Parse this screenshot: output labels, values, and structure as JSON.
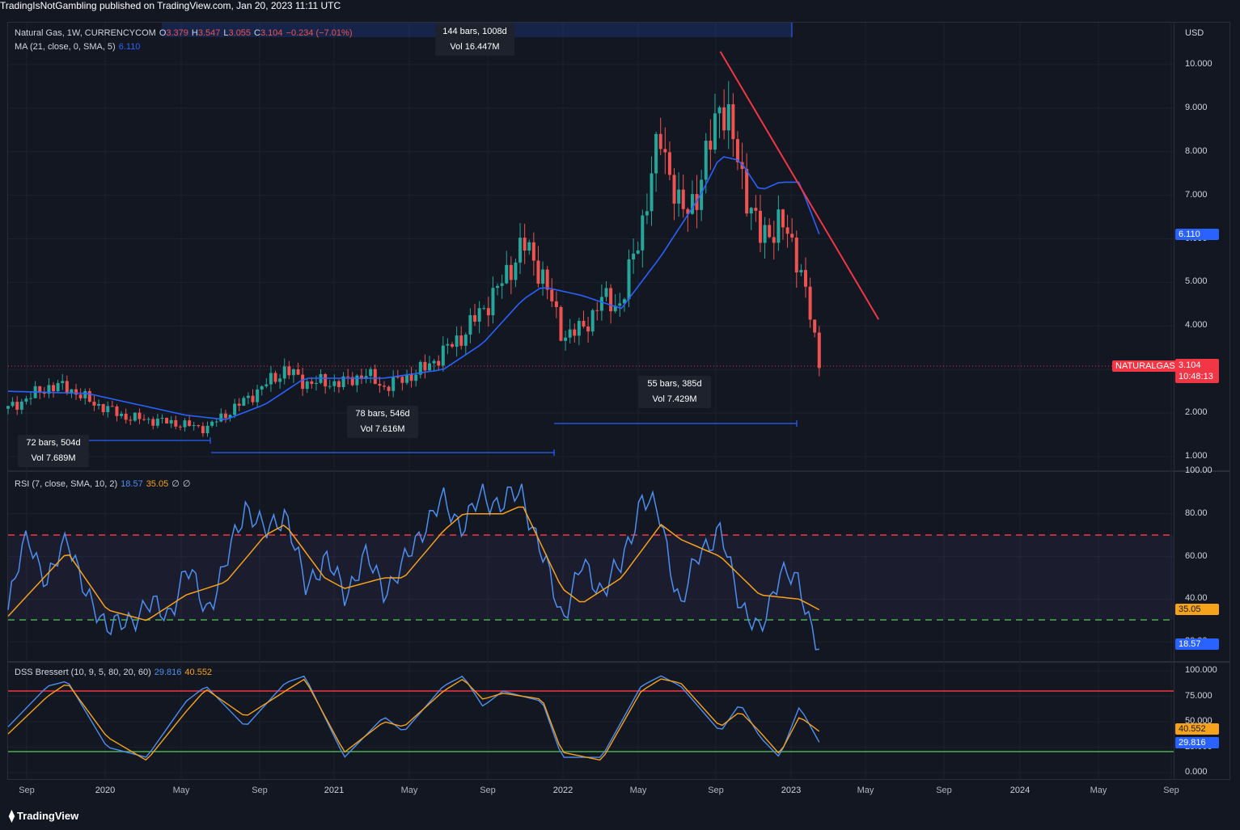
{
  "header": {
    "published": "TradingIsNotGambling published on TradingView.com, Jan 20, 2023 11:11 UTC"
  },
  "main_legend": {
    "symbol": "Natural Gas, 1W, CURRENCYCOM",
    "o_label": "O",
    "o_value": "3.379",
    "h_label": "H",
    "h_value": "3.547",
    "l_label": "L",
    "l_value": "3.055",
    "c_label": "C",
    "c_value": "3.104",
    "change": "−0.234 (−7.01%)",
    "ma_label": "MA (21, close, 0, SMA, 5)",
    "ma_value": "6.110"
  },
  "rsi_legend": {
    "label": "RSI (7, close, SMA, 10, 2)",
    "rsi_value": "18.57",
    "sma_value": "35.05",
    "extra1": "∅",
    "extra2": "∅"
  },
  "dss_legend": {
    "label": "DSS Bressert (10, 9, 5, 80, 20, 60)",
    "v1": "29.816",
    "v2": "40.552"
  },
  "price_axis": {
    "currency": "USD",
    "ticks": [
      "10.000",
      "9.000",
      "8.000",
      "7.000",
      "6.000",
      "5.000",
      "4.000",
      "3.000",
      "2.000",
      "1.000"
    ],
    "ma_badge": "6.110",
    "symbol_badge": "NATURALGAS",
    "price_badge": "3.104",
    "countdown": "10:48:13"
  },
  "rsi_axis": {
    "ticks": [
      "100.00",
      "80.00",
      "60.00",
      "40.00",
      "20.00"
    ],
    "badge_sma": "35.05",
    "badge_rsi": "18.57"
  },
  "dss_axis": {
    "ticks": [
      "100.000",
      "75.000",
      "50.000",
      "25.000",
      "0.000"
    ],
    "badge_v2": "40.552",
    "badge_v1": "29.816"
  },
  "time_axis": {
    "labels": [
      "Sep",
      "2020",
      "May",
      "Sep",
      "2021",
      "May",
      "Sep",
      "2022",
      "May",
      "Sep",
      "2023",
      "May",
      "Sep",
      "2024",
      "May",
      "Sep"
    ]
  },
  "measurements": [
    {
      "line1": "144 bars, 1008d",
      "line2": "Vol 16.447M"
    },
    {
      "line1": "72 bars, 504d",
      "line2": "Vol 7.689M"
    },
    {
      "line1": "78 bars, 546d",
      "line2": "Vol 7.616M"
    },
    {
      "line1": "55 bars, 385d",
      "line2": "Vol 7.429M"
    }
  ],
  "footer": {
    "brand": "TradingView"
  },
  "colors": {
    "background": "#131722",
    "up": "#26a69a",
    "down": "#ef5350",
    "ma": "#2962ff",
    "rsi": "#4d8ff0",
    "rsi_sma": "#f7a21b",
    "trendline": "#f23645",
    "dss_fast": "#4d8ff0",
    "dss_slow": "#f7a21b",
    "upper_level": "#f23645",
    "lower_level": "#4caf50"
  },
  "chart_data": [
    {
      "type": "candlestick",
      "title": "Natural Gas, 1W, CURRENCYCOM",
      "ylim": [
        0.6,
        10.8
      ],
      "x_range": [
        "2019-08",
        "2024-09"
      ],
      "price_keypoints": [
        {
          "t": "2019-08",
          "v": 2.1
        },
        {
          "t": "2019-10",
          "v": 2.6
        },
        {
          "t": "2019-11",
          "v": 2.6
        },
        {
          "t": "2019-12",
          "v": 2.3
        },
        {
          "t": "2020-02",
          "v": 1.9
        },
        {
          "t": "2020-04",
          "v": 1.8
        },
        {
          "t": "2020-06",
          "v": 1.65
        },
        {
          "t": "2020-08",
          "v": 2.3
        },
        {
          "t": "2020-10",
          "v": 3.0
        },
        {
          "t": "2020-11",
          "v": 2.7
        },
        {
          "t": "2021-01",
          "v": 2.7
        },
        {
          "t": "2021-02",
          "v": 2.9
        },
        {
          "t": "2021-03",
          "v": 2.6
        },
        {
          "t": "2021-05",
          "v": 3.0
        },
        {
          "t": "2021-07",
          "v": 3.8
        },
        {
          "t": "2021-09",
          "v": 5.0
        },
        {
          "t": "2021-10",
          "v": 5.9
        },
        {
          "t": "2021-11",
          "v": 5.2
        },
        {
          "t": "2021-12",
          "v": 3.8
        },
        {
          "t": "2022-01",
          "v": 3.9
        },
        {
          "t": "2022-02",
          "v": 4.6
        },
        {
          "t": "2022-03",
          "v": 4.5
        },
        {
          "t": "2022-04",
          "v": 6.3
        },
        {
          "t": "2022-05",
          "v": 8.4
        },
        {
          "t": "2022-06",
          "v": 6.5
        },
        {
          "t": "2022-07",
          "v": 7.2
        },
        {
          "t": "2022-08",
          "v": 9.3
        },
        {
          "t": "2022-09",
          "v": 7.6
        },
        {
          "t": "2022-10",
          "v": 6.0
        },
        {
          "t": "2022-11",
          "v": 6.4
        },
        {
          "t": "2022-12",
          "v": 5.5
        },
        {
          "t": "2023-01",
          "v": 3.104
        }
      ],
      "ma_keypoints": [
        {
          "t": "2019-08",
          "v": 2.5
        },
        {
          "t": "2019-12",
          "v": 2.45
        },
        {
          "t": "2020-05",
          "v": 1.95
        },
        {
          "t": "2020-07",
          "v": 1.85
        },
        {
          "t": "2020-09",
          "v": 2.2
        },
        {
          "t": "2020-11",
          "v": 2.8
        },
        {
          "t": "2021-03",
          "v": 2.8
        },
        {
          "t": "2021-06",
          "v": 3.0
        },
        {
          "t": "2021-08",
          "v": 3.6
        },
        {
          "t": "2021-10",
          "v": 4.6
        },
        {
          "t": "2021-11",
          "v": 4.9
        },
        {
          "t": "2022-01",
          "v": 4.7
        },
        {
          "t": "2022-03",
          "v": 4.4
        },
        {
          "t": "2022-05",
          "v": 5.6
        },
        {
          "t": "2022-07",
          "v": 7.0
        },
        {
          "t": "2022-08",
          "v": 7.9
        },
        {
          "t": "2022-09",
          "v": 7.8
        },
        {
          "t": "2022-10",
          "v": 7.1
        },
        {
          "t": "2022-11",
          "v": 7.3
        },
        {
          "t": "2022-12",
          "v": 7.3
        },
        {
          "t": "2023-01",
          "v": 6.11
        }
      ],
      "trendline": [
        {
          "t": "2022-08",
          "v": 10.3
        },
        {
          "t": "2023-04",
          "v": 4.15
        }
      ]
    },
    {
      "type": "line",
      "title": "RSI (7, close, SMA, 10, 2)",
      "ylim": [
        0,
        100
      ],
      "levels": [
        70,
        30
      ],
      "rsi_keypoints": [
        {
          "t": "2019-08",
          "v": 35
        },
        {
          "t": "2019-09",
          "v": 72
        },
        {
          "t": "2019-10",
          "v": 45
        },
        {
          "t": "2019-11",
          "v": 72
        },
        {
          "t": "2019-12",
          "v": 38
        },
        {
          "t": "2020-01",
          "v": 30
        },
        {
          "t": "2020-02",
          "v": 26
        },
        {
          "t": "2020-03",
          "v": 40
        },
        {
          "t": "2020-04",
          "v": 30
        },
        {
          "t": "2020-05",
          "v": 55
        },
        {
          "t": "2020-06",
          "v": 35
        },
        {
          "t": "2020-07",
          "v": 55
        },
        {
          "t": "2020-08",
          "v": 85
        },
        {
          "t": "2020-09",
          "v": 70
        },
        {
          "t": "2020-10",
          "v": 82
        },
        {
          "t": "2020-11",
          "v": 45
        },
        {
          "t": "2020-12",
          "v": 60
        },
        {
          "t": "2021-01",
          "v": 42
        },
        {
          "t": "2021-02",
          "v": 60
        },
        {
          "t": "2021-03",
          "v": 45
        },
        {
          "t": "2021-04",
          "v": 55
        },
        {
          "t": "2021-05",
          "v": 75
        },
        {
          "t": "2021-06",
          "v": 85
        },
        {
          "t": "2021-07",
          "v": 75
        },
        {
          "t": "2021-08",
          "v": 88
        },
        {
          "t": "2021-09",
          "v": 85
        },
        {
          "t": "2021-10",
          "v": 90
        },
        {
          "t": "2021-11",
          "v": 60
        },
        {
          "t": "2021-12",
          "v": 32
        },
        {
          "t": "2022-01",
          "v": 55
        },
        {
          "t": "2022-02",
          "v": 45
        },
        {
          "t": "2022-03",
          "v": 55
        },
        {
          "t": "2022-04",
          "v": 88
        },
        {
          "t": "2022-05",
          "v": 78
        },
        {
          "t": "2022-06",
          "v": 35
        },
        {
          "t": "2022-07",
          "v": 65
        },
        {
          "t": "2022-08",
          "v": 70
        },
        {
          "t": "2022-09",
          "v": 40
        },
        {
          "t": "2022-10",
          "v": 22
        },
        {
          "t": "2022-11",
          "v": 55
        },
        {
          "t": "2022-12",
          "v": 45
        },
        {
          "t": "2023-01",
          "v": 18.57
        }
      ],
      "sma_keypoints": [
        {
          "t": "2019-08",
          "v": 32
        },
        {
          "t": "2019-11",
          "v": 62
        },
        {
          "t": "2020-01",
          "v": 35
        },
        {
          "t": "2020-03",
          "v": 30
        },
        {
          "t": "2020-05",
          "v": 42
        },
        {
          "t": "2020-07",
          "v": 48
        },
        {
          "t": "2020-09",
          "v": 70
        },
        {
          "t": "2020-10",
          "v": 75
        },
        {
          "t": "2020-12",
          "v": 50
        },
        {
          "t": "2021-01",
          "v": 45
        },
        {
          "t": "2021-03",
          "v": 50
        },
        {
          "t": "2021-04",
          "v": 50
        },
        {
          "t": "2021-06",
          "v": 72
        },
        {
          "t": "2021-07",
          "v": 80
        },
        {
          "t": "2021-09",
          "v": 80
        },
        {
          "t": "2021-10",
          "v": 84
        },
        {
          "t": "2021-12",
          "v": 45
        },
        {
          "t": "2022-01",
          "v": 38
        },
        {
          "t": "2022-03",
          "v": 50
        },
        {
          "t": "2022-05",
          "v": 75
        },
        {
          "t": "2022-06",
          "v": 68
        },
        {
          "t": "2022-08",
          "v": 60
        },
        {
          "t": "2022-10",
          "v": 42
        },
        {
          "t": "2022-12",
          "v": 40
        },
        {
          "t": "2023-01",
          "v": 35.05
        }
      ]
    },
    {
      "type": "line",
      "title": "DSS Bressert (10, 9, 5, 80, 20, 60)",
      "ylim": [
        0,
        100
      ],
      "levels": [
        80,
        20
      ],
      "fast_keypoints": [
        {
          "t": "2019-08",
          "v": 45
        },
        {
          "t": "2019-10",
          "v": 85
        },
        {
          "t": "2019-11",
          "v": 90
        },
        {
          "t": "2020-01",
          "v": 25
        },
        {
          "t": "2020-03",
          "v": 15
        },
        {
          "t": "2020-05",
          "v": 70
        },
        {
          "t": "2020-06",
          "v": 85
        },
        {
          "t": "2020-08",
          "v": 45
        },
        {
          "t": "2020-10",
          "v": 88
        },
        {
          "t": "2020-11",
          "v": 95
        },
        {
          "t": "2021-01",
          "v": 15
        },
        {
          "t": "2021-03",
          "v": 55
        },
        {
          "t": "2021-04",
          "v": 40
        },
        {
          "t": "2021-06",
          "v": 85
        },
        {
          "t": "2021-07",
          "v": 95
        },
        {
          "t": "2021-08",
          "v": 65
        },
        {
          "t": "2021-09",
          "v": 80
        },
        {
          "t": "2021-11",
          "v": 70
        },
        {
          "t": "2021-12",
          "v": 15
        },
        {
          "t": "2022-02",
          "v": 15
        },
        {
          "t": "2022-04",
          "v": 85
        },
        {
          "t": "2022-05",
          "v": 95
        },
        {
          "t": "2022-06",
          "v": 85
        },
        {
          "t": "2022-08",
          "v": 40
        },
        {
          "t": "2022-09",
          "v": 68
        },
        {
          "t": "2022-10",
          "v": 35
        },
        {
          "t": "2022-11",
          "v": 15
        },
        {
          "t": "2022-12",
          "v": 65
        },
        {
          "t": "2023-01",
          "v": 29.816
        }
      ],
      "slow_keypoints": [
        {
          "t": "2019-08",
          "v": 38
        },
        {
          "t": "2019-10",
          "v": 75
        },
        {
          "t": "2019-11",
          "v": 88
        },
        {
          "t": "2020-01",
          "v": 35
        },
        {
          "t": "2020-03",
          "v": 12
        },
        {
          "t": "2020-05",
          "v": 60
        },
        {
          "t": "2020-06",
          "v": 82
        },
        {
          "t": "2020-08",
          "v": 55
        },
        {
          "t": "2020-10",
          "v": 80
        },
        {
          "t": "2020-11",
          "v": 92
        },
        {
          "t": "2021-01",
          "v": 20
        },
        {
          "t": "2021-03",
          "v": 50
        },
        {
          "t": "2021-04",
          "v": 45
        },
        {
          "t": "2021-06",
          "v": 80
        },
        {
          "t": "2021-07",
          "v": 92
        },
        {
          "t": "2021-08",
          "v": 72
        },
        {
          "t": "2021-09",
          "v": 78
        },
        {
          "t": "2021-11",
          "v": 72
        },
        {
          "t": "2021-12",
          "v": 20
        },
        {
          "t": "2022-02",
          "v": 12
        },
        {
          "t": "2022-04",
          "v": 80
        },
        {
          "t": "2022-05",
          "v": 92
        },
        {
          "t": "2022-06",
          "v": 88
        },
        {
          "t": "2022-08",
          "v": 45
        },
        {
          "t": "2022-09",
          "v": 60
        },
        {
          "t": "2022-10",
          "v": 40
        },
        {
          "t": "2022-11",
          "v": 18
        },
        {
          "t": "2022-12",
          "v": 55
        },
        {
          "t": "2023-01",
          "v": 40.552
        }
      ]
    }
  ]
}
